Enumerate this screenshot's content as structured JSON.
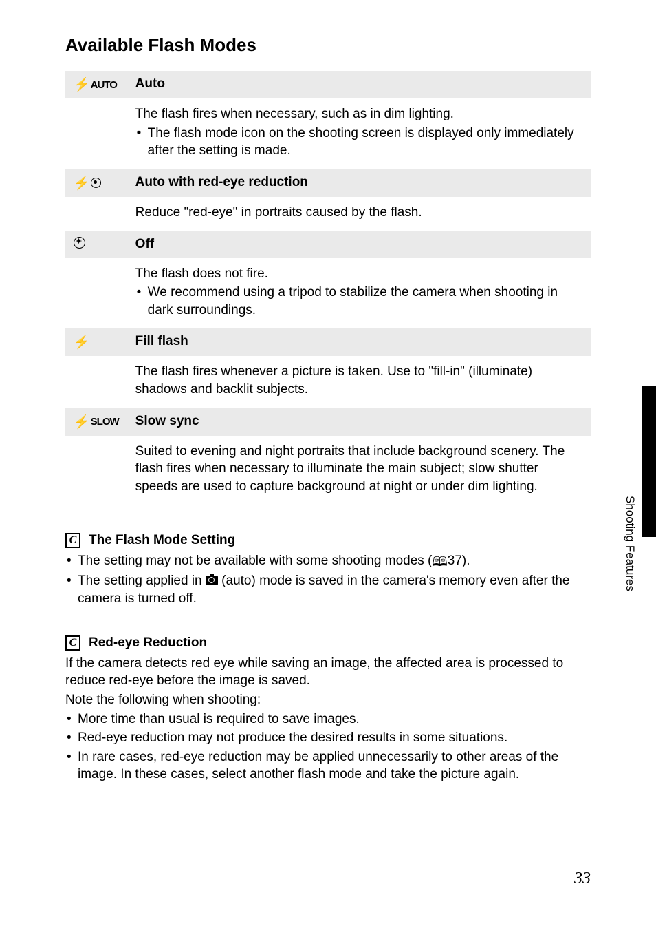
{
  "title": "Available Flash Modes",
  "modes": [
    {
      "icon_type": "auto",
      "name": "Auto",
      "desc": "The flash fires when necessary, such as in dim lighting.",
      "bullets": [
        "The flash mode icon on the shooting screen is displayed only immediately after the setting is made."
      ]
    },
    {
      "icon_type": "redeye",
      "name": "Auto with red-eye reduction",
      "desc": "Reduce \"red-eye\" in portraits caused by the flash.",
      "bullets": []
    },
    {
      "icon_type": "off",
      "name": "Off",
      "desc": "The flash does not fire.",
      "bullets": [
        "We recommend using a tripod to stabilize the camera when shooting in dark surroundings."
      ]
    },
    {
      "icon_type": "fill",
      "name": "Fill flash",
      "desc": "The flash fires whenever a picture is taken. Use to \"fill-in\" (illuminate) shadows and backlit subjects.",
      "bullets": []
    },
    {
      "icon_type": "slow",
      "name": "Slow sync",
      "desc": "Suited to evening and night portraits that include background scenery. The flash fires when necessary to illuminate the main subject; slow shutter speeds are used to capture background at night or under dim lighting.",
      "bullets": []
    }
  ],
  "notes": [
    {
      "title": "The Flash Mode Setting",
      "intro": "",
      "bullets": [
        {
          "pre": "The setting may not be available with some shooting modes (",
          "ref": "37",
          "post": ").",
          "has_ref": true
        },
        {
          "pre": "The setting applied in ",
          "mid": " (auto) mode is saved in the camera's memory even after the camera is turned off.",
          "has_cam": true
        }
      ]
    },
    {
      "title": "Red-eye Reduction",
      "intro": "If the camera detects red eye while saving an image, the affected area is processed to reduce red-eye before the image is saved.",
      "intro2": "Note the following when shooting:",
      "bullets": [
        {
          "text": "More time than usual is required to save images."
        },
        {
          "text": "Red-eye reduction may not produce the desired results in some situations."
        },
        {
          "text": "In rare cases, red-eye reduction may be applied unnecessarily to other areas of the image. In these cases, select another flash mode and take the picture again."
        }
      ]
    }
  ],
  "side_label": "Shooting Features",
  "page_number": "33",
  "ref_prefix": "A"
}
